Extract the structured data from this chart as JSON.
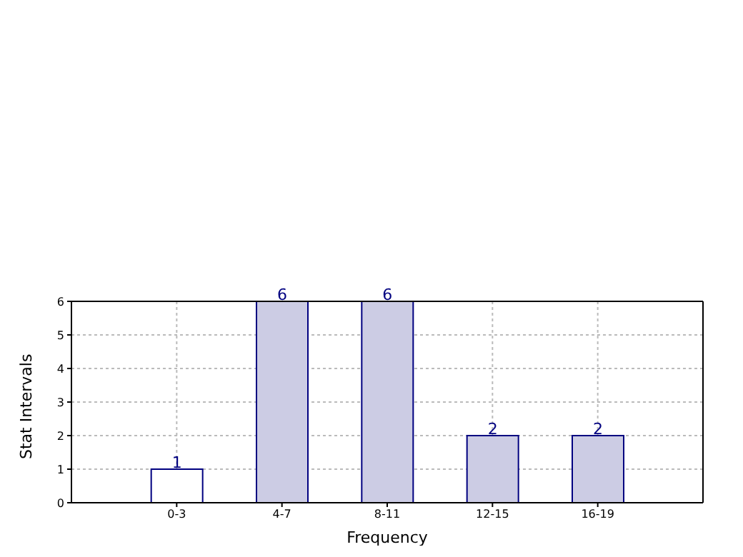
{
  "chart_data": {
    "type": "bar",
    "xlabel": "Frequency",
    "ylabel": "Stat Intervals",
    "categories": [
      "0-3",
      "4-7",
      "8-11",
      "12-15",
      "16-19"
    ],
    "values": [
      1,
      6,
      6,
      2,
      2
    ],
    "colors": [
      "#ffffff",
      "#cccce4",
      "#cccce4",
      "#cccce4",
      "#cccce4"
    ],
    "ylim": [
      0,
      6
    ],
    "yticks": [
      0,
      1,
      2,
      3,
      4,
      5,
      6
    ],
    "grid": true,
    "data_labels": true
  }
}
